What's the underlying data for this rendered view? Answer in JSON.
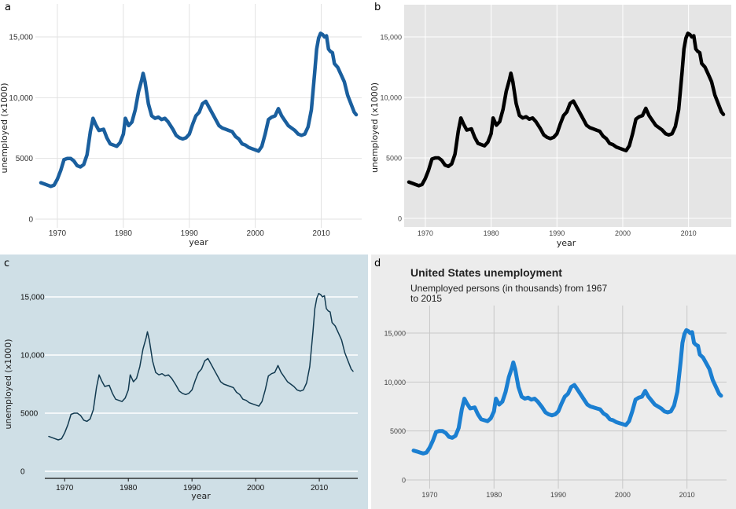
{
  "panels": {
    "a": {
      "label": "a"
    },
    "b": {
      "label": "b"
    },
    "c": {
      "label": "c"
    },
    "d": {
      "label": "d",
      "title": "United States unemployment",
      "subtitle": "Unemployed persons (in thousands) from 1967 to 2015"
    }
  },
  "colors": {
    "a_line": "#1a5f9e",
    "b_line": "#000000",
    "c_line": "#123a50",
    "c_bg": "#cfdfe6",
    "d_line": "#1b7fd1",
    "d_bg": "#ececec",
    "b_bg": "#e5e5e5"
  },
  "chart_data": [
    {
      "panel": "a",
      "type": "line",
      "xlabel": "year",
      "ylabel": "unemployed (x1000)",
      "x_ticks": [
        "1970",
        "1980",
        "1990",
        "2000",
        "2010"
      ],
      "y_ticks": [
        "0",
        "5000",
        "10,000",
        "15,000"
      ],
      "ylim": [
        0,
        15352
      ],
      "xlim": [
        1967.5,
        2015.3
      ],
      "series": [
        {
          "x": [
            1967.5,
            1968.0,
            1968.5,
            1969.0,
            1969.5,
            1970.0,
            1970.5,
            1971.0,
            1971.5,
            1972.0,
            1972.5,
            1973.0,
            1973.5,
            1974.0,
            1974.5,
            1975.0,
            1975.4,
            1975.8,
            1976.3,
            1977.0,
            1977.5,
            1978.0,
            1978.5,
            1979.0,
            1979.5,
            1980.0,
            1980.3,
            1980.8,
            1981.3,
            1981.8,
            1982.3,
            1982.8,
            1983.0,
            1983.3,
            1983.8,
            1984.3,
            1984.8,
            1985.3,
            1985.8,
            1986.3,
            1986.8,
            1987.5,
            1988.0,
            1988.5,
            1989.0,
            1989.5,
            1990.0,
            1990.5,
            1991.0,
            1991.5,
            1992.0,
            1992.5,
            1993.0,
            1993.5,
            1994.0,
            1994.5,
            1995.0,
            1995.5,
            1996.0,
            1996.5,
            1997.0,
            1997.5,
            1998.0,
            1998.5,
            1999.0,
            1999.5,
            2000.0,
            2000.5,
            2001.0,
            2001.5,
            2002.0,
            2002.5,
            2003.0,
            2003.5,
            2004.0,
            2004.5,
            2005.0,
            2005.5,
            2006.0,
            2006.5,
            2007.0,
            2007.5,
            2008.0,
            2008.5,
            2009.0,
            2009.3,
            2009.6,
            2009.9,
            2010.2,
            2010.5,
            2010.8,
            2011.1,
            2011.4,
            2011.7,
            2012.0,
            2012.5,
            2013.0,
            2013.5,
            2014.0,
            2014.5,
            2015.0,
            2015.3
          ],
          "y": [
            3000,
            2900,
            2800,
            2700,
            2800,
            3300,
            4000,
            4900,
            5000,
            5000,
            4800,
            4400,
            4300,
            4500,
            5300,
            7200,
            8300,
            7800,
            7300,
            7400,
            6700,
            6200,
            6100,
            6000,
            6300,
            7000,
            8300,
            7700,
            8000,
            9000,
            10500,
            11500,
            12000,
            11300,
            9500,
            8500,
            8300,
            8400,
            8200,
            8300,
            8000,
            7400,
            6900,
            6700,
            6600,
            6700,
            7000,
            7800,
            8500,
            8800,
            9500,
            9700,
            9200,
            8700,
            8200,
            7700,
            7500,
            7400,
            7300,
            7200,
            6800,
            6600,
            6200,
            6100,
            5900,
            5800,
            5700,
            5600,
            6000,
            7000,
            8200,
            8400,
            8500,
            9100,
            8500,
            8100,
            7700,
            7500,
            7300,
            7000,
            6900,
            7000,
            7600,
            9000,
            12000,
            14000,
            14900,
            15300,
            15200,
            15000,
            15100,
            14000,
            13800,
            13700,
            12800,
            12500,
            11900,
            11300,
            10200,
            9500,
            8800,
            8600
          ]
        }
      ]
    },
    {
      "panel": "b",
      "type": "line",
      "xlabel": "year",
      "ylabel": "unemployed (x1000)",
      "x_ticks": [
        "1970",
        "1980",
        "1990",
        "2000",
        "2010"
      ],
      "y_ticks": [
        "0",
        "5000",
        "10,000",
        "15,000"
      ],
      "ylim": [
        0,
        15352
      ],
      "xlim": [
        1967.5,
        2015.3
      ],
      "grid": true
    },
    {
      "panel": "c",
      "type": "line",
      "xlabel": "year",
      "ylabel": "unemployed (x1000)",
      "x_ticks": [
        "1970",
        "1980",
        "1990",
        "2000",
        "2010"
      ],
      "y_ticks": [
        "0",
        "5000",
        "10,000",
        "15,000"
      ],
      "ylim": [
        0,
        15352
      ],
      "xlim": [
        1967.5,
        2015.3
      ]
    },
    {
      "panel": "d",
      "type": "line",
      "title": "United States unemployment",
      "subtitle": "Unemployed persons (in thousands) from 1967 to 2015",
      "x_ticks": [
        "1970",
        "1980",
        "1990",
        "2000",
        "2010"
      ],
      "y_ticks": [
        "0",
        "5000",
        "10,000",
        "15,000"
      ],
      "ylim": [
        0,
        15352
      ],
      "xlim": [
        1967.5,
        2015.3
      ]
    }
  ]
}
